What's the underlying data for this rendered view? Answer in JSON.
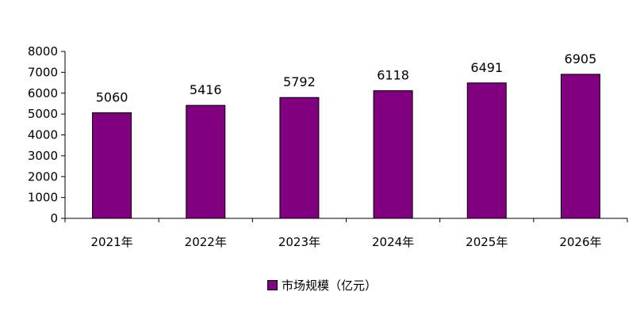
{
  "chart_data": {
    "type": "bar",
    "categories": [
      "2021年",
      "2022年",
      "2023年",
      "2024年",
      "2025年",
      "2026年"
    ],
    "series": [
      {
        "name": "市场规模（亿元）",
        "values": [
          5060,
          5416,
          5792,
          6118,
          6491,
          6905
        ],
        "color": "#800080"
      }
    ],
    "ylim": [
      0,
      8000
    ],
    "yticks": [
      0,
      1000,
      2000,
      3000,
      4000,
      5000,
      6000,
      7000,
      8000
    ],
    "grid": false,
    "data_labels": true,
    "legend_position": "bottom"
  }
}
